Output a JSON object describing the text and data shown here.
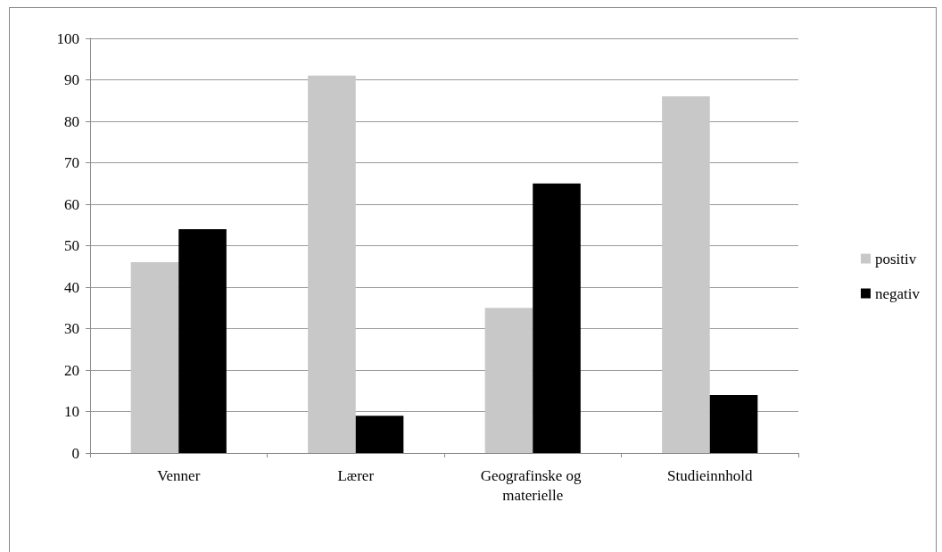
{
  "chart_data": {
    "type": "bar",
    "categories": [
      "Venner",
      "Lærer",
      "Geografinske og materielle",
      "Studieinnhold"
    ],
    "series": [
      {
        "name": "positiv",
        "color": "#c8c8c8",
        "values": [
          46,
          91,
          35,
          86
        ]
      },
      {
        "name": "negativ",
        "color": "#000000",
        "values": [
          54,
          9,
          65,
          14
        ]
      }
    ],
    "ylim": [
      0,
      100
    ],
    "yticks": [
      0,
      10,
      20,
      30,
      40,
      50,
      60,
      70,
      80,
      90,
      100
    ],
    "grid": "y",
    "legend": "right"
  }
}
